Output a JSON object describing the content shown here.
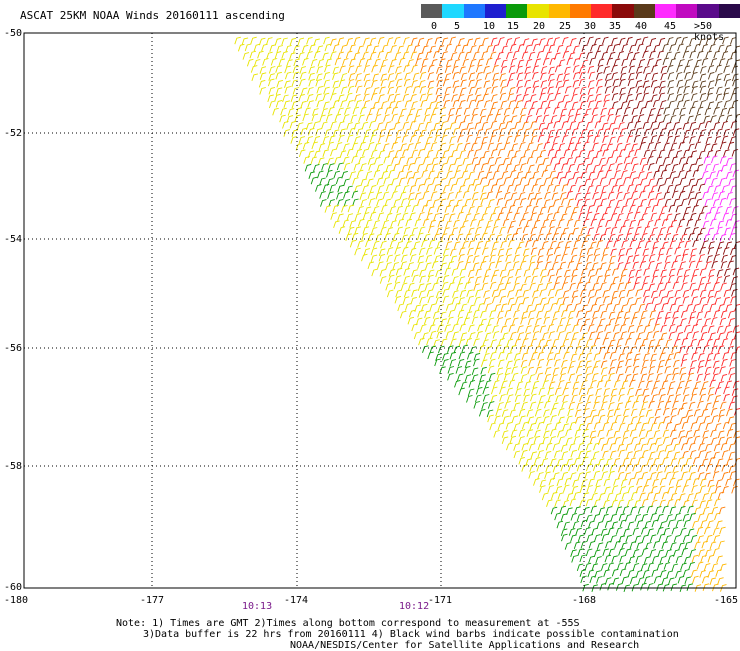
{
  "title": "ASCAT 25KM NOAA Winds 20160111 ascending",
  "legend": {
    "labels": [
      "0",
      "5",
      "10",
      "15",
      "20",
      "25",
      "30",
      "35",
      "40",
      "45",
      ">50 knots"
    ],
    "colors": [
      "#5a5a5a",
      "#1fd8ff",
      "#1f78ff",
      "#1f1fcf",
      "#0a9a0a",
      "#e8e400",
      "#ffb800",
      "#ff7a00",
      "#ff2a2a",
      "#8a0a0a",
      "#5a3a1a",
      "#ff2aff",
      "#c00ac0",
      "#5a0a8a",
      "#2a0a4a"
    ]
  },
  "axes": {
    "lat_labels": [
      "-50",
      "-52",
      "-54",
      "-56",
      "-58",
      "-60"
    ],
    "lon_labels": [
      "-180",
      "-177",
      "-174",
      "-171",
      "-168",
      "-165"
    ]
  },
  "times": [
    {
      "label": "10:13"
    },
    {
      "label": "10:12"
    }
  ],
  "notes": {
    "line1": "Note: 1) Times are GMT 2)Times along bottom correspond to measurement at -55S",
    "line2": "3)Data buffer is 22 hrs from 20160111 4) Black wind barbs indicate possible contamination",
    "line3": "NOAA/NESDIS/Center for Satellite Applications and Research"
  }
}
